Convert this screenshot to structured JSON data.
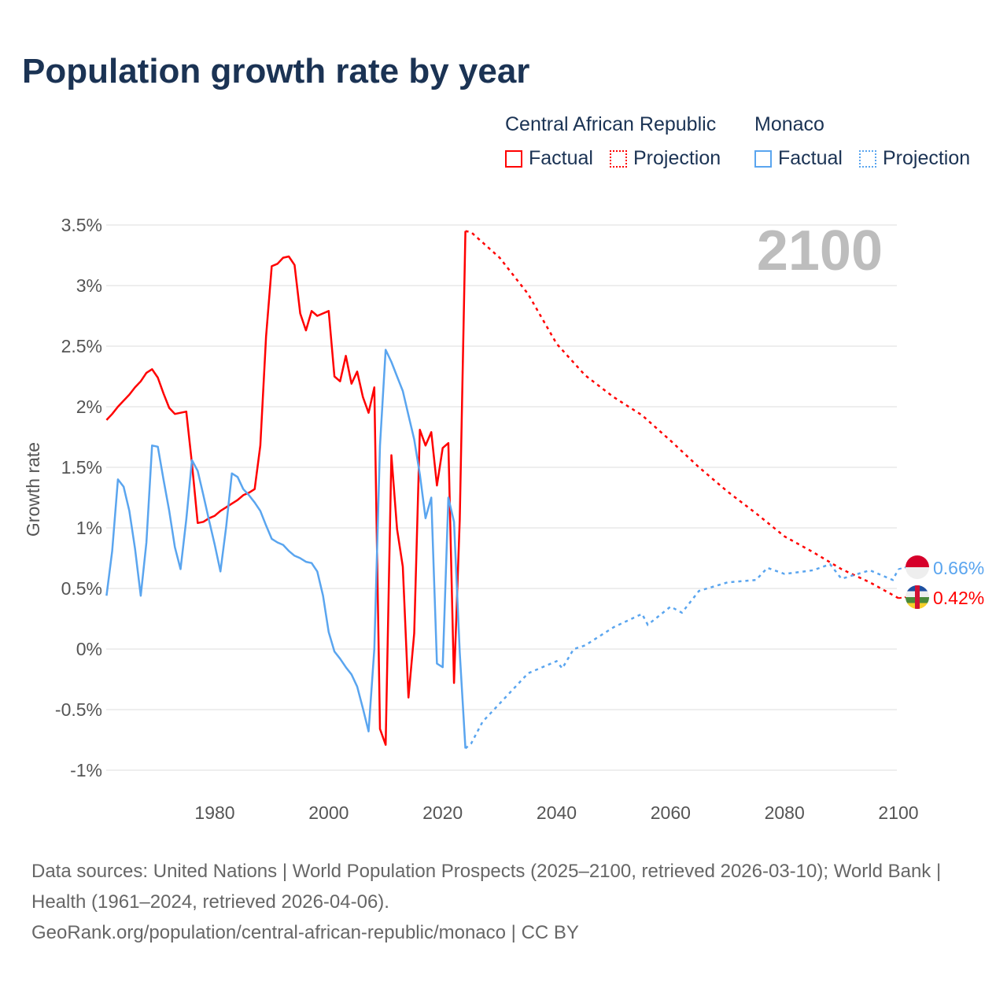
{
  "title": "Population growth rate by year",
  "legend": {
    "groups": [
      {
        "name": "Central African Republic",
        "color": "#ff0000",
        "factual_label": "Factual",
        "projection_label": "Projection"
      },
      {
        "name": "Monaco",
        "color": "#5aa5ef",
        "factual_label": "Factual",
        "projection_label": "Projection"
      }
    ]
  },
  "year_marker": "2100",
  "footer": {
    "sources": "Data sources: United Nations | World Population Prospects (2025–2100, retrieved 2026-03-10); World Bank | Health (1961–2024, retrieved 2026-04-06).",
    "link": "GeoRank.org/population/central-african-republic/monaco | CC BY"
  },
  "chart_data": {
    "type": "line",
    "title": "Population growth rate by year",
    "xlabel": "",
    "ylabel": "Growth rate",
    "xlim": [
      1961,
      2100
    ],
    "ylim": [
      -1,
      3.5
    ],
    "x_ticks": [
      1980,
      2000,
      2020,
      2040,
      2060,
      2080,
      2100
    ],
    "y_ticks": [
      -1,
      -0.5,
      0,
      0.5,
      1,
      1.5,
      2,
      2.5,
      3,
      3.5
    ],
    "y_tick_labels": [
      "-1%",
      "-0.5%",
      "0%",
      "0.5%",
      "1%",
      "1.5%",
      "2%",
      "2.5%",
      "3%",
      "3.5%"
    ],
    "grid": true,
    "legend_position": "top-right",
    "series": [
      {
        "name": "Central African Republic",
        "color": "#ff0000",
        "end_label": "0.42%",
        "factual": {
          "x_start": 1961,
          "values": [
            1.89,
            1.94,
            2.0,
            2.05,
            2.1,
            2.16,
            2.21,
            2.28,
            2.31,
            2.24,
            2.11,
            1.99,
            1.94,
            1.95,
            1.96,
            1.53,
            1.04,
            1.05,
            1.08,
            1.1,
            1.14,
            1.17,
            1.2,
            1.23,
            1.27,
            1.29,
            1.32,
            1.68,
            2.58,
            3.16,
            3.18,
            3.23,
            3.24,
            3.17,
            2.77,
            2.63,
            2.79,
            2.75,
            2.77,
            2.79,
            2.25,
            2.21,
            2.42,
            2.19,
            2.29,
            2.08,
            1.95,
            2.16,
            -0.66,
            -0.79,
            1.6,
            0.99,
            0.68,
            -0.4,
            0.13,
            1.81,
            1.68,
            1.79,
            1.35,
            1.66,
            1.7,
            -0.28,
            1.07,
            3.45
          ]
        },
        "projection": {
          "x": [
            2024,
            2025,
            2030,
            2035,
            2040,
            2045,
            2050,
            2055,
            2060,
            2065,
            2070,
            2075,
            2080,
            2085,
            2090,
            2095,
            2100
          ],
          "values": [
            3.45,
            3.44,
            3.23,
            2.93,
            2.52,
            2.26,
            2.08,
            1.93,
            1.72,
            1.5,
            1.3,
            1.12,
            0.93,
            0.8,
            0.66,
            0.55,
            0.42
          ]
        }
      },
      {
        "name": "Monaco",
        "color": "#5aa5ef",
        "end_label": "0.66%",
        "factual": {
          "x_start": 1961,
          "values": [
            0.44,
            0.81,
            1.4,
            1.34,
            1.14,
            0.83,
            0.44,
            0.88,
            1.68,
            1.67,
            1.4,
            1.14,
            0.84,
            0.66,
            1.07,
            1.56,
            1.47,
            1.27,
            1.06,
            0.86,
            0.64,
            1.01,
            1.45,
            1.42,
            1.32,
            1.27,
            1.21,
            1.14,
            1.02,
            0.91,
            0.88,
            0.86,
            0.81,
            0.77,
            0.75,
            0.72,
            0.71,
            0.64,
            0.44,
            0.14,
            -0.02,
            -0.08,
            -0.15,
            -0.21,
            -0.31,
            -0.49,
            -0.68,
            0.0,
            1.68,
            2.47,
            2.37,
            2.25,
            2.13,
            1.93,
            1.73,
            1.44,
            1.08,
            1.25,
            -0.12,
            -0.15,
            1.25,
            1.05,
            -0.03,
            -0.82
          ]
        },
        "projection": {
          "x": [
            2024,
            2025,
            2027,
            2030,
            2033,
            2035,
            2040,
            2041,
            2043,
            2045,
            2050,
            2055,
            2056,
            2060,
            2062,
            2065,
            2070,
            2075,
            2077,
            2080,
            2085,
            2088,
            2090,
            2095,
            2099,
            2100
          ],
          "values": [
            -0.82,
            -0.78,
            -0.6,
            -0.45,
            -0.3,
            -0.2,
            -0.1,
            -0.16,
            0.0,
            0.03,
            0.18,
            0.29,
            0.2,
            0.35,
            0.3,
            0.48,
            0.55,
            0.57,
            0.67,
            0.62,
            0.65,
            0.7,
            0.58,
            0.65,
            0.57,
            0.66
          ]
        }
      }
    ]
  }
}
